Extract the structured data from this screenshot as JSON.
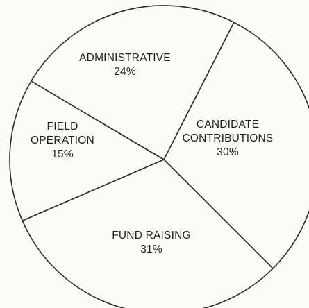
{
  "chart_data": {
    "type": "pie",
    "title": "",
    "slices": [
      {
        "label_lines": [
          "CANDIDATE",
          "CONTRIBUTIONS"
        ],
        "value": 30,
        "value_text": "30%"
      },
      {
        "label_lines": [
          "FUND RAISING"
        ],
        "value": 31,
        "value_text": "31%"
      },
      {
        "label_lines": [
          "FIELD",
          "OPERATION"
        ],
        "value": 15,
        "value_text": "15%"
      },
      {
        "label_lines": [
          "ADMINISTRATIVE"
        ],
        "value": 24,
        "value_text": "24%"
      }
    ],
    "legend": "none",
    "colors": {
      "fill": "#fbfbf7",
      "stroke": "#2a2a2a",
      "text": "#1f1f1f"
    }
  }
}
